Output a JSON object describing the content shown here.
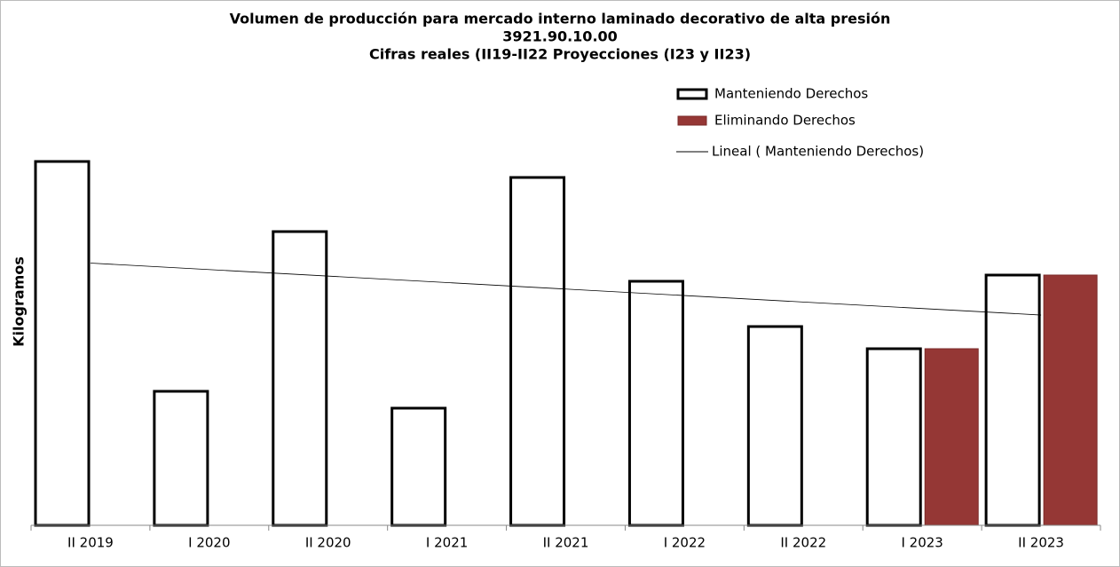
{
  "chart_data": {
    "type": "bar",
    "title": "Volumen de producción para mercado interno laminado decorativo de alta presión",
    "subtitle": "3921.90.10.00",
    "subtitle2": "Cifras reales (II19-II22 Proyecciones (I23 y II23)",
    "ylabel": "Kilogramos",
    "categories": [
      "II 2019",
      "I 2020",
      "II 2020",
      "I 2021",
      "II 2021",
      "I 2022",
      "II 2022",
      "I 2023",
      "II 2023"
    ],
    "series": [
      {
        "name": "Manteniendo Derechos",
        "color": "#ffffff",
        "values": [
          410,
          151,
          331,
          132,
          392,
          275,
          224,
          199,
          282
        ]
      },
      {
        "name": "Eliminando Derechos",
        "color": "#953735",
        "values": [
          null,
          null,
          null,
          null,
          null,
          null,
          null,
          199,
          282
        ]
      }
    ],
    "trendline": {
      "name": "Lineal ( Manteniendo Derechos)",
      "color": "#000000"
    }
  }
}
